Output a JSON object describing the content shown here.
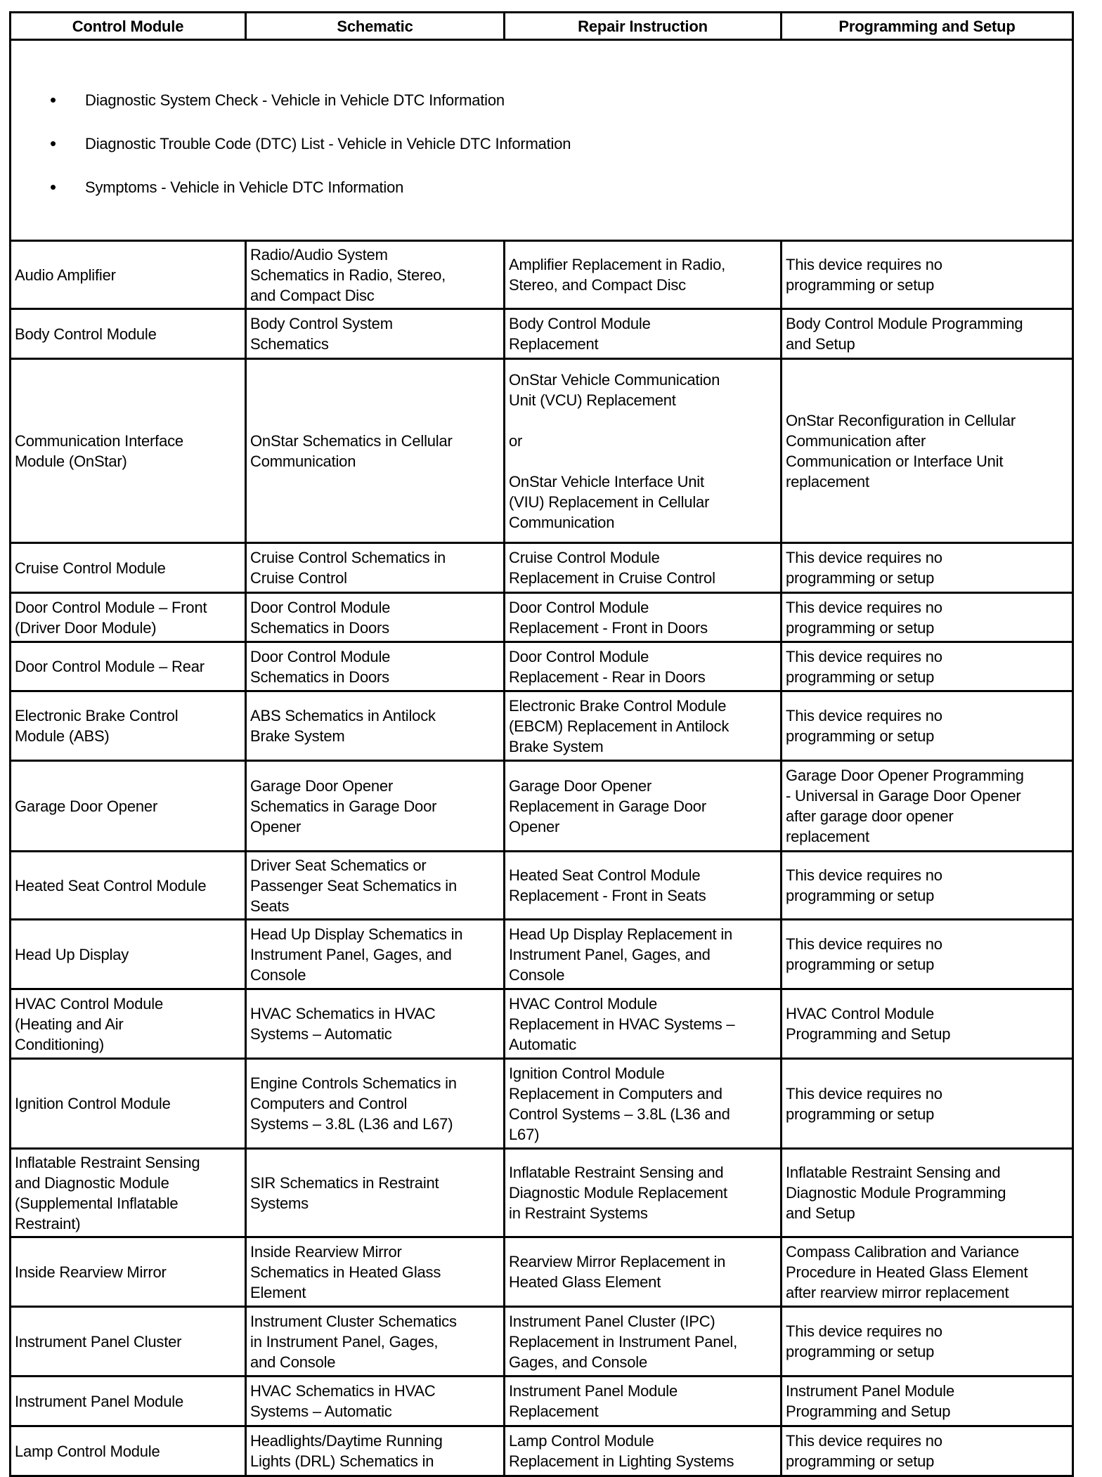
{
  "headers": [
    "Control Module",
    "Schematic",
    "Repair Instruction",
    "Programming and Setup"
  ],
  "bullets": [
    "Diagnostic System Check - Vehicle in Vehicle DTC Information",
    "Diagnostic Trouble Code (DTC) List - Vehicle in Vehicle DTC Information",
    "Symptoms - Vehicle in Vehicle DTC Information"
  ],
  "rows": [
    [
      "Audio Amplifier",
      "Radio/Audio System\nSchematics in Radio, Stereo,\nand Compact Disc",
      "Amplifier Replacement in Radio,\nStereo, and Compact Disc",
      "This device requires no\nprogramming or setup"
    ],
    [
      "Body Control Module",
      "Body Control System\nSchematics",
      "Body Control Module\nReplacement",
      "Body Control Module Programming\nand Setup"
    ],
    [
      "Communication Interface\nModule (OnStar)",
      "OnStar Schematics in Cellular\nCommunication",
      "OnStar Vehicle Communication\nUnit (VCU) Replacement\n\nor\n\nOnStar Vehicle Interface Unit\n(VIU) Replacement in Cellular\nCommunication",
      "OnStar Reconfiguration in Cellular\nCommunication after\nCommunication or Interface Unit\nreplacement"
    ],
    [
      "Cruise Control Module",
      "Cruise Control Schematics in\nCruise Control",
      "Cruise Control Module\nReplacement in Cruise Control",
      "This device requires no\nprogramming or setup"
    ],
    [
      "Door Control Module – Front\n(Driver Door Module)",
      "Door Control Module\nSchematics in Doors",
      "Door Control Module\nReplacement - Front in Doors",
      "This device requires no\nprogramming or setup"
    ],
    [
      "Door Control Module – Rear",
      "Door Control Module\nSchematics in Doors",
      "Door Control Module\nReplacement - Rear in Doors",
      "This device requires no\nprogramming or setup"
    ],
    [
      "Electronic Brake Control\nModule (ABS)",
      "ABS Schematics in Antilock\nBrake System",
      "Electronic Brake Control Module\n(EBCM) Replacement in Antilock\nBrake System",
      "This device requires no\nprogramming or setup"
    ],
    [
      "Garage Door Opener",
      "Garage Door Opener\nSchematics in Garage Door\nOpener",
      "Garage Door Opener\nReplacement in Garage Door\nOpener",
      "Garage Door Opener Programming\n- Universal in Garage Door Opener\nafter garage door opener\nreplacement"
    ],
    [
      "Heated Seat Control Module",
      "Driver Seat Schematics or\nPassenger Seat Schematics in\nSeats",
      "Heated Seat Control Module\nReplacement - Front in Seats",
      "This device requires no\nprogramming or setup"
    ],
    [
      "Head Up Display",
      "Head Up Display Schematics in\nInstrument Panel, Gages, and\nConsole",
      "Head Up Display Replacement in\nInstrument Panel, Gages, and\nConsole",
      "This device requires no\nprogramming or setup"
    ],
    [
      "HVAC Control Module\n(Heating and Air\nConditioning)",
      "HVAC Schematics in HVAC\nSystems – Automatic",
      "HVAC Control Module\nReplacement in HVAC Systems –\nAutomatic",
      "HVAC Control Module\nProgramming and Setup"
    ],
    [
      "Ignition Control Module",
      "Engine Controls Schematics in\nComputers and Control\nSystems – 3.8L (L36 and L67)",
      "Ignition Control Module\nReplacement in Computers and\nControl Systems – 3.8L (L36 and\nL67)",
      "This device requires no\nprogramming or setup"
    ],
    [
      "Inflatable Restraint Sensing\nand Diagnostic Module\n(Supplemental Inflatable\nRestraint)",
      "SIR Schematics in Restraint\nSystems",
      "Inflatable Restraint Sensing and\nDiagnostic Module Replacement\nin Restraint Systems",
      "Inflatable Restraint Sensing and\nDiagnostic Module Programming\nand Setup"
    ],
    [
      "Inside Rearview Mirror",
      "Inside Rearview Mirror\nSchematics in Heated Glass\nElement",
      "Rearview Mirror Replacement in\nHeated Glass Element",
      "Compass Calibration and Variance\nProcedure in Heated Glass Element\nafter rearview mirror replacement"
    ],
    [
      "Instrument Panel Cluster",
      "Instrument Cluster Schematics\nin Instrument Panel, Gages,\nand Console",
      "Instrument Panel Cluster (IPC)\nReplacement in Instrument Panel,\nGages, and Console",
      "This device requires no\nprogramming or setup"
    ],
    [
      "Instrument Panel Module",
      "HVAC Schematics in HVAC\nSystems – Automatic",
      "Instrument Panel Module\nReplacement",
      "Instrument Panel Module\nProgramming and Setup"
    ],
    [
      "Lamp Control Module",
      "Headlights/Daytime Running\nLights (DRL) Schematics in",
      "Lamp Control Module\nReplacement in Lighting Systems",
      "This device requires no\nprogramming or setup"
    ]
  ]
}
